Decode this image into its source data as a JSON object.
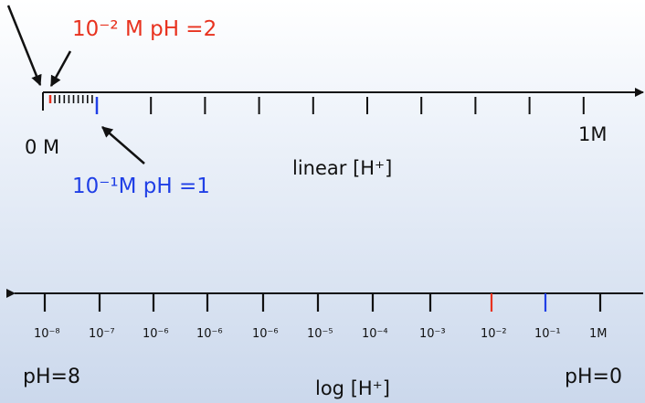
{
  "linear_scale": {
    "start_label": "0 M",
    "end_label": "1M",
    "axis_title": "linear [H⁺]",
    "annotation_red": "10⁻² M pH =2",
    "annotation_blue": "10⁻¹M  pH =1"
  },
  "log_scale": {
    "tick_labels": [
      "10⁻⁸",
      "10⁻⁷",
      "10⁻⁶",
      "10⁻⁶",
      "10⁻⁶",
      "10⁻⁵",
      "10⁻⁴",
      "10⁻³",
      "10⁻²",
      "10⁻¹",
      "1M"
    ],
    "left_label": "pH=8",
    "right_label": "pH=0",
    "axis_title": "log [H⁺]"
  },
  "colors": {
    "red": "#e8321f",
    "blue": "#1f3fe6",
    "ink": "#111111"
  }
}
